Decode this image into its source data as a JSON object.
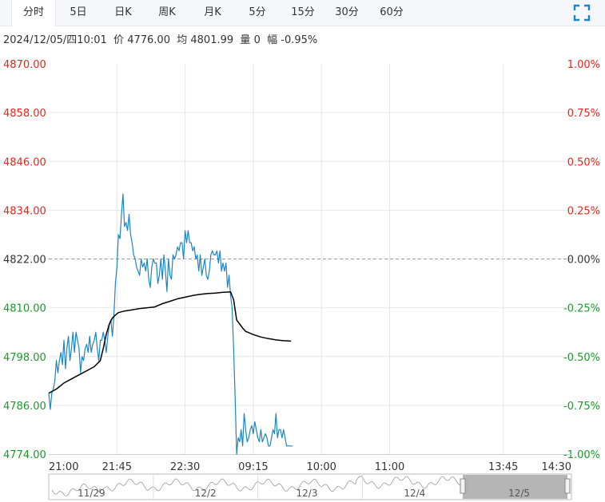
{
  "tabs": [
    {
      "label": "分时",
      "active": true
    },
    {
      "label": "5日",
      "active": false
    },
    {
      "label": "日K",
      "active": false
    },
    {
      "label": "周K",
      "active": false
    },
    {
      "label": "月K",
      "active": false
    },
    {
      "label": "5分",
      "active": false
    },
    {
      "label": "15分",
      "active": false
    },
    {
      "label": "30分",
      "active": false
    },
    {
      "label": "60分",
      "active": false
    }
  ],
  "fullscreen_icon": "expand-icon",
  "info": {
    "datetime": "2024/12/05/四10:01",
    "price_label": "价",
    "price": "4776.00",
    "avg_label": "均",
    "avg": "4801.99",
    "vol_label": "量",
    "vol": "0",
    "chg_label": "幅",
    "chg": "-0.95%"
  },
  "colors": {
    "up": "#e8251b",
    "down": "#1a9a2b",
    "price_line": "#1a86c7",
    "avg_line": "#000000",
    "grid": "#e6e6e6",
    "ref_line": "#999999"
  },
  "chart_data": {
    "type": "line",
    "y_ticks": [
      "4870.00",
      "4858.00",
      "4846.00",
      "4834.00",
      "4822.00",
      "4810.00",
      "4798.00",
      "4786.00",
      "4774.00"
    ],
    "y_pct_ticks": [
      "1.00%",
      "0.75%",
      "0.50%",
      "0.25%",
      "0.00%",
      "-0.25%",
      "-0.50%",
      "-0.75%",
      "-1.00%"
    ],
    "ylim": [
      4774.0,
      4870.0
    ],
    "ref_price": 4822.0,
    "x_ticks": [
      "21:00",
      "21:45",
      "22:30",
      "09:15",
      "10:00",
      "11:00",
      "13:45",
      "14:30"
    ],
    "x_total_minutes": 345,
    "x_tick_minutes": [
      0,
      45,
      90,
      135,
      180,
      225,
      300,
      345
    ],
    "series": [
      {
        "kind": "price",
        "x_minutes": [
          0,
          1,
          2,
          3,
          4,
          5,
          6,
          7,
          8,
          9,
          10,
          11,
          12,
          13,
          14,
          15,
          16,
          17,
          18,
          19,
          20,
          21,
          22,
          23,
          24,
          25,
          26,
          27,
          28,
          29,
          30,
          31,
          32,
          33,
          34,
          35,
          36,
          37,
          38,
          39,
          40,
          41,
          42,
          43,
          44,
          45,
          46,
          47,
          48,
          49,
          50,
          51,
          52,
          53,
          54,
          55,
          56,
          57,
          58,
          59,
          60,
          61,
          62,
          63,
          64,
          65,
          66,
          67,
          68,
          69,
          70,
          71,
          72,
          73,
          74,
          75,
          76,
          77,
          78,
          79,
          80,
          81,
          82,
          83,
          84,
          85,
          86,
          87,
          88,
          89,
          90,
          91,
          92,
          93,
          94,
          95,
          96,
          97,
          98,
          99,
          100,
          101,
          102,
          103,
          104,
          105,
          106,
          107,
          108,
          109,
          110,
          111,
          112,
          113,
          114,
          115,
          116,
          117,
          118,
          119,
          120,
          121,
          122,
          123,
          124,
          125,
          126,
          127,
          128,
          129,
          130,
          131,
          132,
          133,
          134,
          135,
          136,
          137,
          138,
          139,
          140,
          141,
          142,
          143,
          144,
          145,
          146,
          147,
          148,
          149,
          150,
          151,
          152,
          153,
          154,
          155,
          156,
          157,
          158,
          159,
          160,
          161
        ],
        "values": [
          4789,
          4785,
          4789,
          4790,
          4792,
          4797,
          4794,
          4797,
          4799,
          4796,
          4802,
          4795,
          4800,
          4803,
          4797,
          4800,
          4804,
          4799,
          4804,
          4802,
          4800,
          4794,
          4798,
          4797,
          4800,
          4801,
          4799,
          4803,
          4799,
          4801,
          4802,
          4804,
          4800,
          4797,
          4802,
          4802,
          4804,
          4802,
          4799,
          4803,
          4806,
          4807,
          4803,
          4808,
          4816,
          4820,
          4828,
          4827,
          4833,
          4838,
          4830,
          4831,
          4829,
          4833,
          4828,
          4826,
          4823,
          4822,
          4820,
          4819,
          4818,
          4822,
          4820,
          4821,
          4819,
          4822,
          4817,
          4815,
          4820,
          4822,
          4821,
          4821,
          4816,
          4818,
          4822,
          4817,
          4823,
          4819,
          4814,
          4822,
          4818,
          4817,
          4823,
          4822,
          4823,
          4825,
          4824,
          4826,
          4826,
          4822,
          4829,
          4826,
          4829,
          4826,
          4826,
          4824,
          4825,
          4822,
          4823,
          4819,
          4823,
          4818,
          4820,
          4822,
          4818,
          4817,
          4819,
          4823,
          4824,
          4823,
          4823,
          4824,
          4821,
          4824,
          4819,
          4821,
          4819,
          4821,
          4815,
          4818,
          4813,
          4810,
          4800,
          4788,
          4774,
          4778,
          4777,
          4780,
          4776,
          4784,
          4780,
          4777,
          4778,
          4780,
          4781,
          4779,
          4782,
          4780,
          4778,
          4777,
          4780,
          4777,
          4778,
          4779,
          4778,
          4776,
          4776,
          4778,
          4780,
          4779,
          4784,
          4778,
          4780,
          4780,
          4778,
          4780,
          4778,
          4776,
          4776,
          4776,
          4776,
          4776
        ],
        "name": ""
      },
      {
        "kind": "average",
        "x_minutes": [
          0,
          5,
          10,
          15,
          20,
          25,
          30,
          34,
          36,
          38,
          40,
          42,
          44,
          46,
          50,
          55,
          60,
          65,
          70,
          75,
          80,
          85,
          90,
          95,
          100,
          105,
          110,
          115,
          120,
          122,
          124,
          126,
          128,
          130,
          135,
          140,
          145,
          150,
          155,
          160
        ],
        "values": [
          4789,
          4790,
          4791.5,
          4792.5,
          4793.5,
          4794.5,
          4795.5,
          4797,
          4800,
          4803.5,
          4806,
          4807.5,
          4808.2,
          4808.8,
          4809.2,
          4809.5,
          4809.8,
          4810,
          4810.2,
          4811,
          4811.6,
          4812.2,
          4812.6,
          4813,
          4813.3,
          4813.5,
          4813.6,
          4813.8,
          4813.9,
          4812,
          4807,
          4806,
          4805,
          4804.2,
          4803.4,
          4802.8,
          4802.4,
          4802.1,
          4801.9,
          4801.8
        ],
        "name": ""
      }
    ],
    "grid": true
  },
  "navigator": {
    "date_labels": [
      "11/29",
      "12/2",
      "12/3",
      "12/4",
      "12/5"
    ],
    "label_day_index": [
      0,
      1,
      2,
      3,
      4
    ]
  }
}
